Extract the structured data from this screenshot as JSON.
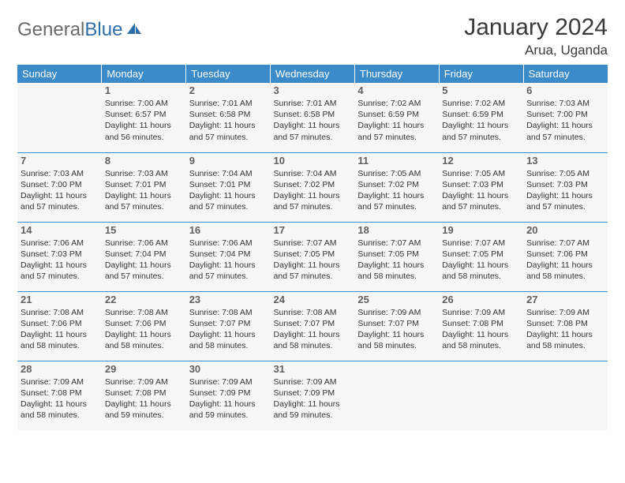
{
  "brand": {
    "part1": "General",
    "part2": "Blue"
  },
  "title": "January 2024",
  "location": "Arua, Uganda",
  "colors": {
    "header_bg": "#3b8bc9",
    "cell_bg": "#f7f7f7",
    "rule": "#3b8bc9"
  },
  "weekdays": [
    "Sunday",
    "Monday",
    "Tuesday",
    "Wednesday",
    "Thursday",
    "Friday",
    "Saturday"
  ],
  "weeks": [
    [
      null,
      {
        "n": "1",
        "sr": "Sunrise: 7:00 AM",
        "ss": "Sunset: 6:57 PM",
        "dl": "Daylight: 11 hours and 56 minutes."
      },
      {
        "n": "2",
        "sr": "Sunrise: 7:01 AM",
        "ss": "Sunset: 6:58 PM",
        "dl": "Daylight: 11 hours and 57 minutes."
      },
      {
        "n": "3",
        "sr": "Sunrise: 7:01 AM",
        "ss": "Sunset: 6:58 PM",
        "dl": "Daylight: 11 hours and 57 minutes."
      },
      {
        "n": "4",
        "sr": "Sunrise: 7:02 AM",
        "ss": "Sunset: 6:59 PM",
        "dl": "Daylight: 11 hours and 57 minutes."
      },
      {
        "n": "5",
        "sr": "Sunrise: 7:02 AM",
        "ss": "Sunset: 6:59 PM",
        "dl": "Daylight: 11 hours and 57 minutes."
      },
      {
        "n": "6",
        "sr": "Sunrise: 7:03 AM",
        "ss": "Sunset: 7:00 PM",
        "dl": "Daylight: 11 hours and 57 minutes."
      }
    ],
    [
      {
        "n": "7",
        "sr": "Sunrise: 7:03 AM",
        "ss": "Sunset: 7:00 PM",
        "dl": "Daylight: 11 hours and 57 minutes."
      },
      {
        "n": "8",
        "sr": "Sunrise: 7:03 AM",
        "ss": "Sunset: 7:01 PM",
        "dl": "Daylight: 11 hours and 57 minutes."
      },
      {
        "n": "9",
        "sr": "Sunrise: 7:04 AM",
        "ss": "Sunset: 7:01 PM",
        "dl": "Daylight: 11 hours and 57 minutes."
      },
      {
        "n": "10",
        "sr": "Sunrise: 7:04 AM",
        "ss": "Sunset: 7:02 PM",
        "dl": "Daylight: 11 hours and 57 minutes."
      },
      {
        "n": "11",
        "sr": "Sunrise: 7:05 AM",
        "ss": "Sunset: 7:02 PM",
        "dl": "Daylight: 11 hours and 57 minutes."
      },
      {
        "n": "12",
        "sr": "Sunrise: 7:05 AM",
        "ss": "Sunset: 7:03 PM",
        "dl": "Daylight: 11 hours and 57 minutes."
      },
      {
        "n": "13",
        "sr": "Sunrise: 7:05 AM",
        "ss": "Sunset: 7:03 PM",
        "dl": "Daylight: 11 hours and 57 minutes."
      }
    ],
    [
      {
        "n": "14",
        "sr": "Sunrise: 7:06 AM",
        "ss": "Sunset: 7:03 PM",
        "dl": "Daylight: 11 hours and 57 minutes."
      },
      {
        "n": "15",
        "sr": "Sunrise: 7:06 AM",
        "ss": "Sunset: 7:04 PM",
        "dl": "Daylight: 11 hours and 57 minutes."
      },
      {
        "n": "16",
        "sr": "Sunrise: 7:06 AM",
        "ss": "Sunset: 7:04 PM",
        "dl": "Daylight: 11 hours and 57 minutes."
      },
      {
        "n": "17",
        "sr": "Sunrise: 7:07 AM",
        "ss": "Sunset: 7:05 PM",
        "dl": "Daylight: 11 hours and 57 minutes."
      },
      {
        "n": "18",
        "sr": "Sunrise: 7:07 AM",
        "ss": "Sunset: 7:05 PM",
        "dl": "Daylight: 11 hours and 58 minutes."
      },
      {
        "n": "19",
        "sr": "Sunrise: 7:07 AM",
        "ss": "Sunset: 7:05 PM",
        "dl": "Daylight: 11 hours and 58 minutes."
      },
      {
        "n": "20",
        "sr": "Sunrise: 7:07 AM",
        "ss": "Sunset: 7:06 PM",
        "dl": "Daylight: 11 hours and 58 minutes."
      }
    ],
    [
      {
        "n": "21",
        "sr": "Sunrise: 7:08 AM",
        "ss": "Sunset: 7:06 PM",
        "dl": "Daylight: 11 hours and 58 minutes."
      },
      {
        "n": "22",
        "sr": "Sunrise: 7:08 AM",
        "ss": "Sunset: 7:06 PM",
        "dl": "Daylight: 11 hours and 58 minutes."
      },
      {
        "n": "23",
        "sr": "Sunrise: 7:08 AM",
        "ss": "Sunset: 7:07 PM",
        "dl": "Daylight: 11 hours and 58 minutes."
      },
      {
        "n": "24",
        "sr": "Sunrise: 7:08 AM",
        "ss": "Sunset: 7:07 PM",
        "dl": "Daylight: 11 hours and 58 minutes."
      },
      {
        "n": "25",
        "sr": "Sunrise: 7:09 AM",
        "ss": "Sunset: 7:07 PM",
        "dl": "Daylight: 11 hours and 58 minutes."
      },
      {
        "n": "26",
        "sr": "Sunrise: 7:09 AM",
        "ss": "Sunset: 7:08 PM",
        "dl": "Daylight: 11 hours and 58 minutes."
      },
      {
        "n": "27",
        "sr": "Sunrise: 7:09 AM",
        "ss": "Sunset: 7:08 PM",
        "dl": "Daylight: 11 hours and 58 minutes."
      }
    ],
    [
      {
        "n": "28",
        "sr": "Sunrise: 7:09 AM",
        "ss": "Sunset: 7:08 PM",
        "dl": "Daylight: 11 hours and 58 minutes."
      },
      {
        "n": "29",
        "sr": "Sunrise: 7:09 AM",
        "ss": "Sunset: 7:08 PM",
        "dl": "Daylight: 11 hours and 59 minutes."
      },
      {
        "n": "30",
        "sr": "Sunrise: 7:09 AM",
        "ss": "Sunset: 7:09 PM",
        "dl": "Daylight: 11 hours and 59 minutes."
      },
      {
        "n": "31",
        "sr": "Sunrise: 7:09 AM",
        "ss": "Sunset: 7:09 PM",
        "dl": "Daylight: 11 hours and 59 minutes."
      },
      null,
      null,
      null
    ]
  ]
}
